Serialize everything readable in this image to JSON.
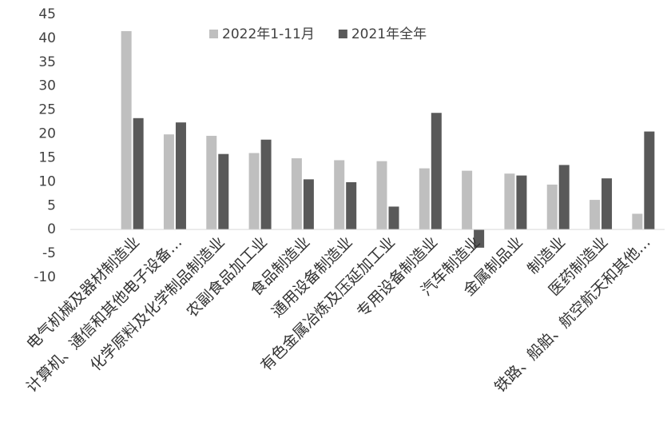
{
  "chart_data": {
    "type": "bar",
    "categories": [
      "电气机械及器材制造业",
      "计算机、通信和其他电子设备…",
      "化学原料及化学制品制造业",
      "农副食品加工业",
      "食品制造业",
      "通用设备制造业",
      "有色金属冶炼及压延加工业",
      "专用设备制造业",
      "汽车制造业",
      "金属制品业",
      "制造业",
      "医药制造业",
      "铁路、船舶、航空航天和其他…"
    ],
    "series": [
      {
        "name": "2022年1-11月",
        "color": "#bfbfbf",
        "values": [
          41.5,
          19.9,
          19.6,
          16.0,
          14.9,
          14.5,
          14.3,
          12.8,
          12.3,
          11.7,
          9.4,
          6.2,
          3.3
        ]
      },
      {
        "name": "2021年全年",
        "color": "#595959",
        "values": [
          23.3,
          22.4,
          15.8,
          18.8,
          10.5,
          9.9,
          4.8,
          24.4,
          -3.8,
          11.3,
          13.5,
          10.7,
          20.5
        ]
      }
    ],
    "ylim": [
      -10,
      45
    ],
    "yticks": [
      -10,
      -5,
      0,
      5,
      10,
      15,
      20,
      25,
      30,
      35,
      40,
      45
    ],
    "grid": false,
    "legend": "top-center"
  }
}
